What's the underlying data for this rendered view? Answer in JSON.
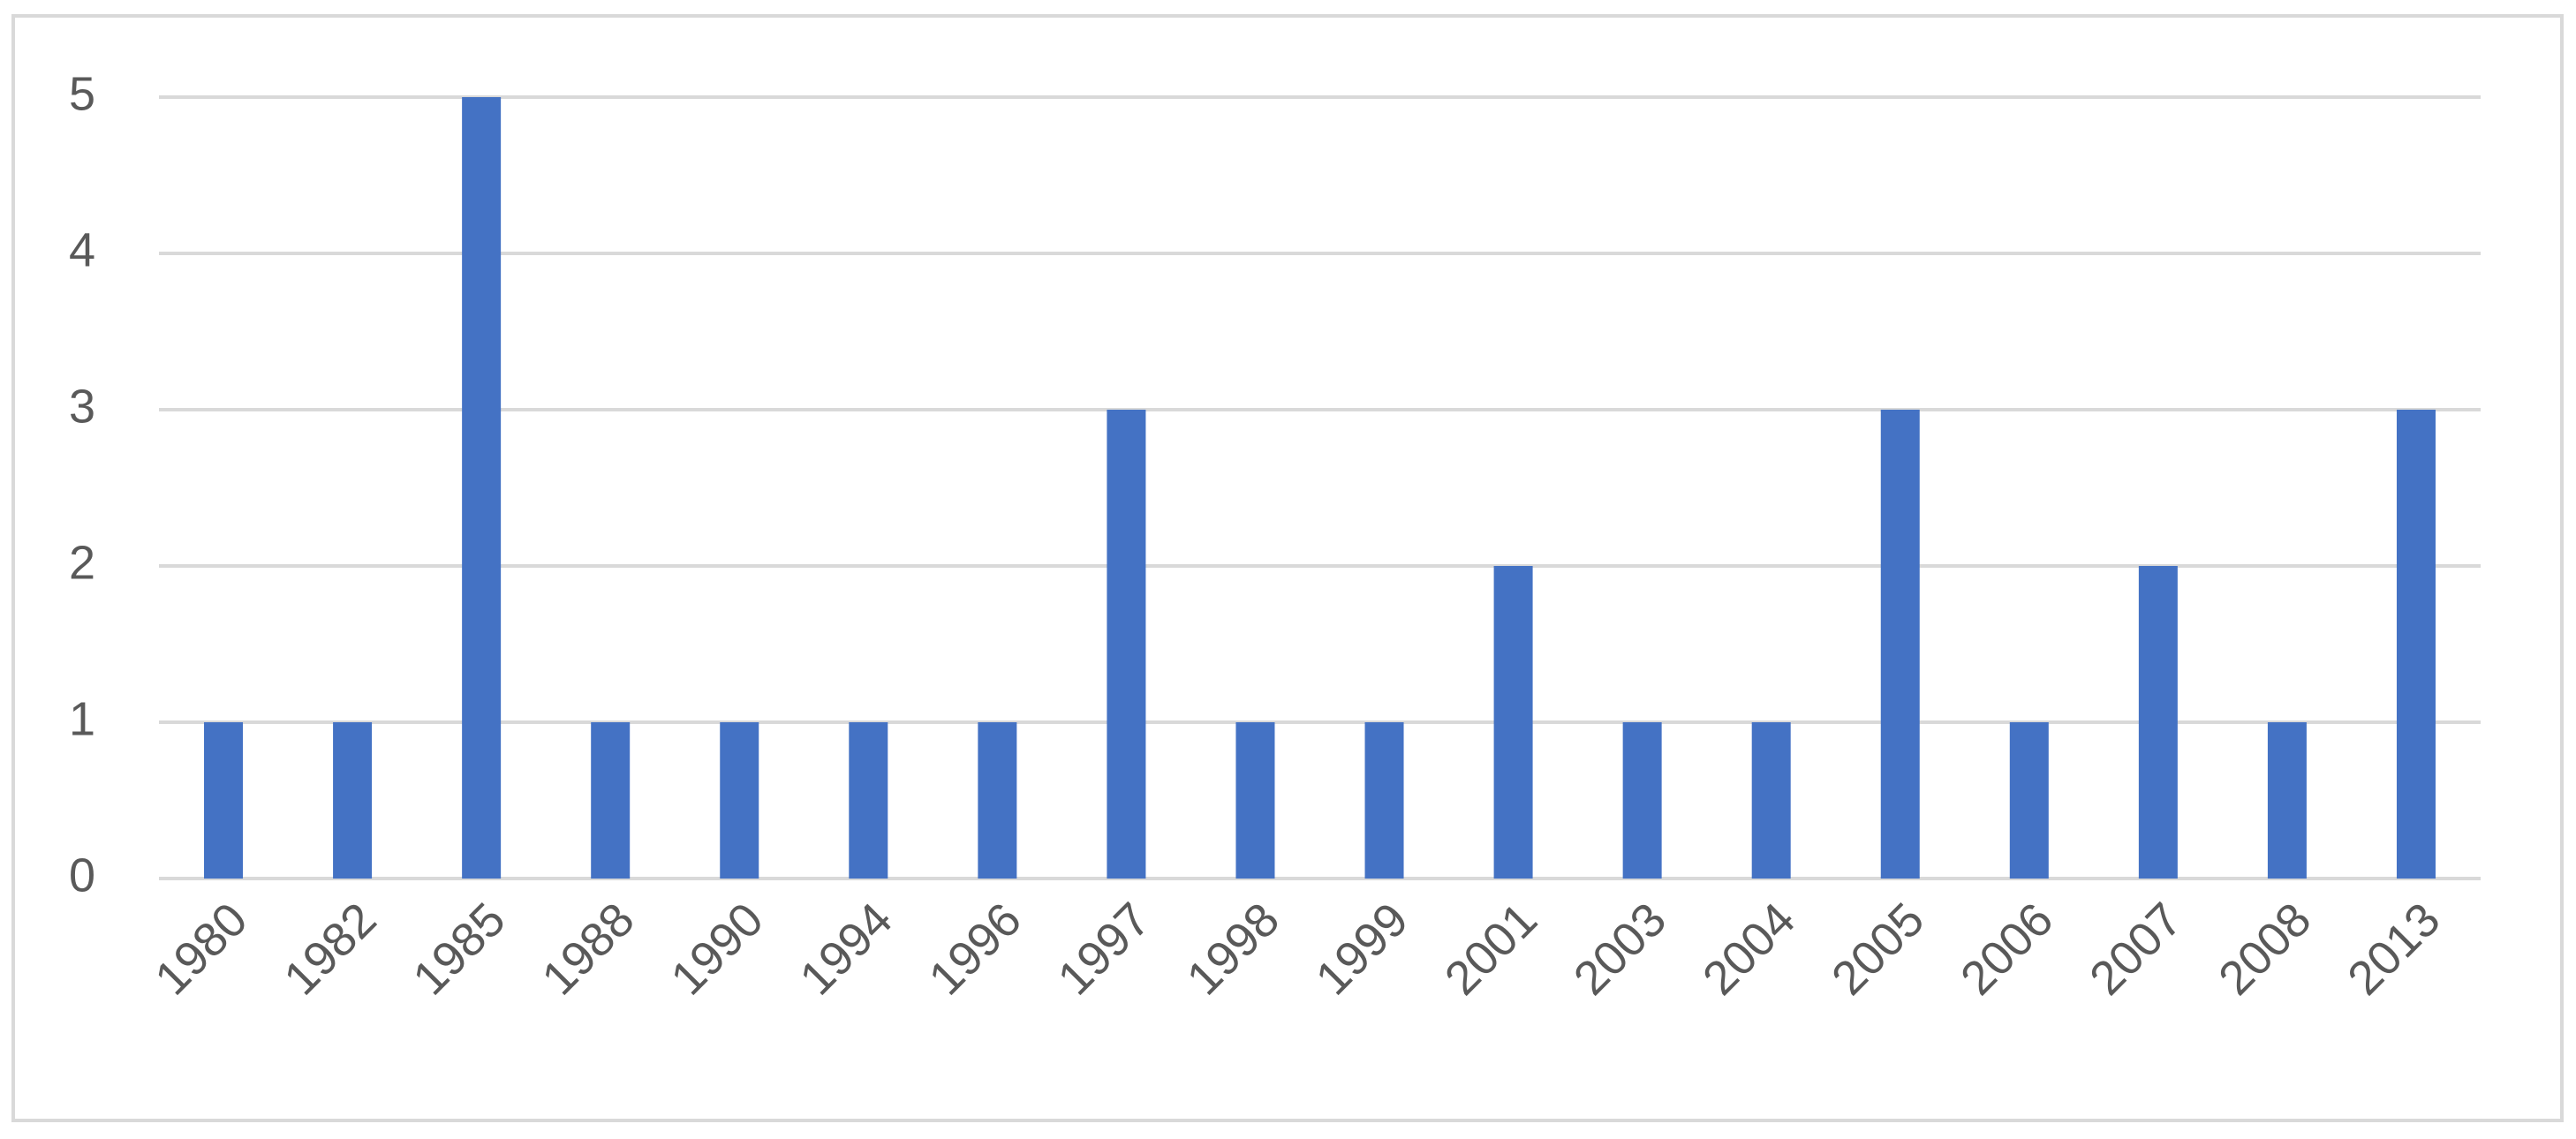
{
  "chart_data": {
    "type": "bar",
    "categories": [
      "1980",
      "1982",
      "1985",
      "1988",
      "1990",
      "1994",
      "1996",
      "1997",
      "1998",
      "1999",
      "2001",
      "2003",
      "2004",
      "2005",
      "2006",
      "2007",
      "2008",
      "2013"
    ],
    "values": [
      1,
      1,
      5,
      1,
      1,
      1,
      1,
      3,
      1,
      1,
      2,
      1,
      1,
      3,
      1,
      2,
      1,
      3
    ],
    "color": "#4472c4",
    "ylim": [
      0,
      5
    ],
    "yticks": [
      0,
      1,
      2,
      3,
      4,
      5
    ],
    "grid": true
  }
}
